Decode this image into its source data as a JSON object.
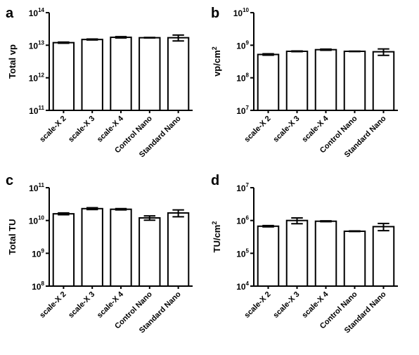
{
  "chart_data": [
    {
      "panel": "a",
      "type": "bar",
      "ylabel": "Total vp",
      "yscale": "log",
      "ylim": [
        100000000000.0,
        100000000000000.0
      ],
      "categories": [
        "scale-X 2",
        "scale-X 3",
        "scale-X 4",
        "Control Nano",
        "Standard Nano"
      ],
      "values": [
        12000000000000.0,
        15000000000000.0,
        17500000000000.0,
        17000000000000.0,
        17000000000000.0
      ],
      "errors": [
        500000000000.0,
        500000000000.0,
        800000000000.0,
        300000000000.0,
        3500000000000.0
      ]
    },
    {
      "panel": "b",
      "type": "bar",
      "ylabel": "vp/cm²",
      "yscale": "log",
      "ylim": [
        10000000.0,
        10000000000.0
      ],
      "categories": [
        "scale-X 2",
        "scale-X 3",
        "scale-X 4",
        "Control Nano",
        "Standard Nano"
      ],
      "values": [
        520000000.0,
        650000000.0,
        730000000.0,
        650000000.0,
        630000000.0
      ],
      "errors": [
        25000000.0,
        15000000.0,
        30000000.0,
        10000000.0,
        140000000.0
      ]
    },
    {
      "panel": "c",
      "type": "bar",
      "ylabel": "Total TU",
      "yscale": "log",
      "ylim": [
        100000000.0,
        100000000000.0
      ],
      "categories": [
        "scale-X 2",
        "scale-X 3",
        "scale-X 4",
        "Control Nano",
        "Standard Nano"
      ],
      "values": [
        16000000000.0,
        23000000000.0,
        22000000000.0,
        12000000000.0,
        17000000000.0
      ],
      "errors": [
        1000000000.0,
        1500000000.0,
        1000000000.0,
        1800000000.0,
        4000000000.0
      ]
    },
    {
      "panel": "d",
      "type": "bar",
      "ylabel": "TU/cm²",
      "yscale": "log",
      "ylim": [
        10000.0,
        10000000.0
      ],
      "categories": [
        "scale-X 2",
        "scale-X 3",
        "scale-X 4",
        "Control Nano",
        "Standard Nano"
      ],
      "values": [
        670000.0,
        1000000.0,
        950000.0,
        470000.0,
        650000.0
      ],
      "errors": [
        30000.0,
        200000.0,
        30000.0,
        10000.0,
        160000.0
      ]
    }
  ]
}
